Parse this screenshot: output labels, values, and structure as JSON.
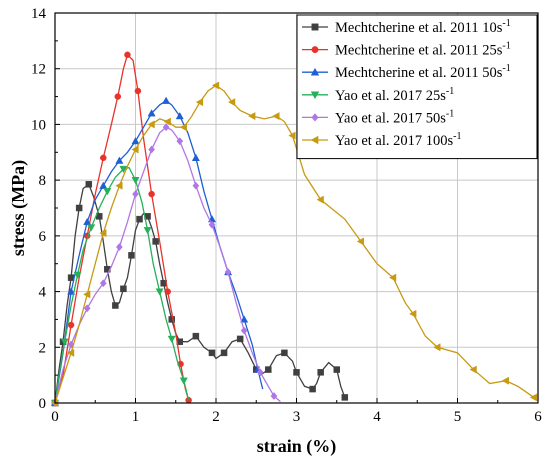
{
  "chart_data": {
    "type": "line",
    "xlabel": "strain (%)",
    "ylabel": "stress (MPa)",
    "xlim": [
      0,
      6
    ],
    "ylim": [
      0,
      14
    ],
    "grid": true,
    "legend_position": "top-right",
    "x_ticks": [
      "0",
      "1",
      "2",
      "3",
      "4",
      "5",
      "6"
    ],
    "y_ticks": [
      "0",
      "2",
      "4",
      "6",
      "8",
      "10",
      "12",
      "14"
    ],
    "series": [
      {
        "name": "Mechtcherine et al. 2011 10s",
        "superscript": "-1",
        "color": "#404040",
        "marker": "square",
        "points": [
          [
            0,
            0
          ],
          [
            0.05,
            1.2
          ],
          [
            0.1,
            2.2
          ],
          [
            0.15,
            3.5
          ],
          [
            0.2,
            4.5
          ],
          [
            0.25,
            6.0
          ],
          [
            0.3,
            7.0
          ],
          [
            0.35,
            7.7
          ],
          [
            0.42,
            7.85
          ],
          [
            0.48,
            7.4
          ],
          [
            0.55,
            6.7
          ],
          [
            0.6,
            5.8
          ],
          [
            0.65,
            4.8
          ],
          [
            0.7,
            4.0
          ],
          [
            0.75,
            3.5
          ],
          [
            0.8,
            3.6
          ],
          [
            0.85,
            4.1
          ],
          [
            0.9,
            4.5
          ],
          [
            0.95,
            5.3
          ],
          [
            1.0,
            6.2
          ],
          [
            1.05,
            6.6
          ],
          [
            1.1,
            6.8
          ],
          [
            1.15,
            6.7
          ],
          [
            1.2,
            6.3
          ],
          [
            1.25,
            5.8
          ],
          [
            1.3,
            5.0
          ],
          [
            1.35,
            4.3
          ],
          [
            1.4,
            3.6
          ],
          [
            1.45,
            3.0
          ],
          [
            1.5,
            2.5
          ],
          [
            1.55,
            2.2
          ],
          [
            1.65,
            2.2
          ],
          [
            1.75,
            2.4
          ],
          [
            1.85,
            2.0
          ],
          [
            1.95,
            1.8
          ],
          [
            2.0,
            1.6
          ],
          [
            2.1,
            1.8
          ],
          [
            2.2,
            2.2
          ],
          [
            2.3,
            2.3
          ],
          [
            2.4,
            1.8
          ],
          [
            2.5,
            1.2
          ],
          [
            2.55,
            1.0
          ],
          [
            2.65,
            1.2
          ],
          [
            2.75,
            1.7
          ],
          [
            2.85,
            1.8
          ],
          [
            2.95,
            1.5
          ],
          [
            3.0,
            1.1
          ],
          [
            3.1,
            0.6
          ],
          [
            3.2,
            0.5
          ],
          [
            3.25,
            0.7
          ],
          [
            3.3,
            1.1
          ],
          [
            3.4,
            1.45
          ],
          [
            3.5,
            1.2
          ],
          [
            3.55,
            0.6
          ],
          [
            3.6,
            0.2
          ]
        ]
      },
      {
        "name": "Mechtcherine et al. 2011 25s",
        "superscript": "-1",
        "color": "#e8332b",
        "marker": "circle",
        "points": [
          [
            0,
            0
          ],
          [
            0.1,
            1.0
          ],
          [
            0.2,
            2.8
          ],
          [
            0.3,
            4.5
          ],
          [
            0.4,
            6.0
          ],
          [
            0.5,
            7.5
          ],
          [
            0.6,
            8.8
          ],
          [
            0.7,
            10.0
          ],
          [
            0.78,
            11.0
          ],
          [
            0.85,
            12.0
          ],
          [
            0.9,
            12.5
          ],
          [
            0.97,
            12.3
          ],
          [
            1.03,
            11.2
          ],
          [
            1.1,
            9.5
          ],
          [
            1.2,
            7.5
          ],
          [
            1.3,
            5.8
          ],
          [
            1.4,
            4.0
          ],
          [
            1.5,
            2.5
          ],
          [
            1.56,
            1.4
          ],
          [
            1.62,
            0.5
          ],
          [
            1.66,
            0.1
          ]
        ]
      },
      {
        "name": "Mechtcherine et al. 2011 50s",
        "superscript": "-1",
        "color": "#1f5fd6",
        "marker": "triangle-up",
        "points": [
          [
            0,
            0
          ],
          [
            0.1,
            1.8
          ],
          [
            0.2,
            4.0
          ],
          [
            0.3,
            5.3
          ],
          [
            0.4,
            6.5
          ],
          [
            0.5,
            7.3
          ],
          [
            0.6,
            7.8
          ],
          [
            0.7,
            8.3
          ],
          [
            0.8,
            8.7
          ],
          [
            0.9,
            9.0
          ],
          [
            1.0,
            9.4
          ],
          [
            1.1,
            9.9
          ],
          [
            1.2,
            10.4
          ],
          [
            1.3,
            10.7
          ],
          [
            1.38,
            10.85
          ],
          [
            1.45,
            10.7
          ],
          [
            1.55,
            10.3
          ],
          [
            1.65,
            9.7
          ],
          [
            1.75,
            8.8
          ],
          [
            1.85,
            7.6
          ],
          [
            1.95,
            6.6
          ],
          [
            2.05,
            5.6
          ],
          [
            2.15,
            4.7
          ],
          [
            2.25,
            3.9
          ],
          [
            2.35,
            3.0
          ],
          [
            2.45,
            2.1
          ],
          [
            2.52,
            1.2
          ],
          [
            2.58,
            0.5
          ]
        ]
      },
      {
        "name": "Yao et al. 2017 25s",
        "superscript": "-1",
        "color": "#25b05a",
        "marker": "triangle-down",
        "points": [
          [
            0,
            0
          ],
          [
            0.05,
            1.0
          ],
          [
            0.12,
            2.2
          ],
          [
            0.2,
            3.5
          ],
          [
            0.28,
            4.6
          ],
          [
            0.35,
            5.5
          ],
          [
            0.45,
            6.3
          ],
          [
            0.55,
            7.0
          ],
          [
            0.65,
            7.6
          ],
          [
            0.75,
            8.1
          ],
          [
            0.85,
            8.4
          ],
          [
            0.92,
            8.45
          ],
          [
            1.0,
            8.0
          ],
          [
            1.08,
            7.2
          ],
          [
            1.15,
            6.2
          ],
          [
            1.22,
            5.0
          ],
          [
            1.3,
            4.0
          ],
          [
            1.38,
            3.0
          ],
          [
            1.45,
            2.3
          ],
          [
            1.52,
            1.5
          ],
          [
            1.6,
            0.8
          ],
          [
            1.66,
            0.1
          ]
        ]
      },
      {
        "name": "Yao et al. 2017 50s",
        "superscript": "-1",
        "color": "#b176e6",
        "marker": "diamond",
        "points": [
          [
            0,
            0
          ],
          [
            0.1,
            1.2
          ],
          [
            0.2,
            2.1
          ],
          [
            0.3,
            2.8
          ],
          [
            0.4,
            3.4
          ],
          [
            0.5,
            3.9
          ],
          [
            0.6,
            4.3
          ],
          [
            0.7,
            4.9
          ],
          [
            0.8,
            5.6
          ],
          [
            0.9,
            6.5
          ],
          [
            1.0,
            7.5
          ],
          [
            1.1,
            8.3
          ],
          [
            1.2,
            9.1
          ],
          [
            1.3,
            9.7
          ],
          [
            1.38,
            9.9
          ],
          [
            1.45,
            9.8
          ],
          [
            1.55,
            9.4
          ],
          [
            1.65,
            8.7
          ],
          [
            1.75,
            7.8
          ],
          [
            1.85,
            7.0
          ],
          [
            1.95,
            6.4
          ],
          [
            2.05,
            5.6
          ],
          [
            2.15,
            4.7
          ],
          [
            2.25,
            3.6
          ],
          [
            2.35,
            2.6
          ],
          [
            2.45,
            1.8
          ],
          [
            2.55,
            1.1
          ],
          [
            2.65,
            0.6
          ],
          [
            2.72,
            0.25
          ],
          [
            2.8,
            0.05
          ]
        ]
      },
      {
        "name": "Yao et al. 2017 100s",
        "superscript": "-1",
        "color": "#c79a12",
        "marker": "triangle-left",
        "points": [
          [
            0,
            0
          ],
          [
            0.1,
            0.9
          ],
          [
            0.2,
            1.8
          ],
          [
            0.3,
            2.8
          ],
          [
            0.4,
            3.9
          ],
          [
            0.5,
            5.0
          ],
          [
            0.6,
            6.1
          ],
          [
            0.7,
            7.0
          ],
          [
            0.8,
            7.8
          ],
          [
            0.9,
            8.5
          ],
          [
            1.0,
            9.1
          ],
          [
            1.1,
            9.6
          ],
          [
            1.2,
            10.0
          ],
          [
            1.3,
            10.2
          ],
          [
            1.4,
            10.1
          ],
          [
            1.5,
            9.9
          ],
          [
            1.6,
            9.9
          ],
          [
            1.7,
            10.3
          ],
          [
            1.8,
            10.8
          ],
          [
            1.9,
            11.2
          ],
          [
            2.0,
            11.4
          ],
          [
            2.1,
            11.2
          ],
          [
            2.2,
            10.8
          ],
          [
            2.3,
            10.5
          ],
          [
            2.45,
            10.3
          ],
          [
            2.6,
            10.2
          ],
          [
            2.75,
            10.3
          ],
          [
            2.85,
            10.1
          ],
          [
            2.95,
            9.6
          ],
          [
            3.1,
            8.2
          ],
          [
            3.3,
            7.3
          ],
          [
            3.6,
            6.6
          ],
          [
            3.8,
            5.8
          ],
          [
            4.0,
            5.0
          ],
          [
            4.2,
            4.5
          ],
          [
            4.35,
            3.6
          ],
          [
            4.45,
            3.2
          ],
          [
            4.6,
            2.4
          ],
          [
            4.75,
            2.0
          ],
          [
            5.0,
            1.8
          ],
          [
            5.2,
            1.2
          ],
          [
            5.4,
            0.7
          ],
          [
            5.6,
            0.8
          ],
          [
            5.75,
            0.6
          ],
          [
            5.95,
            0.2
          ]
        ]
      }
    ]
  }
}
